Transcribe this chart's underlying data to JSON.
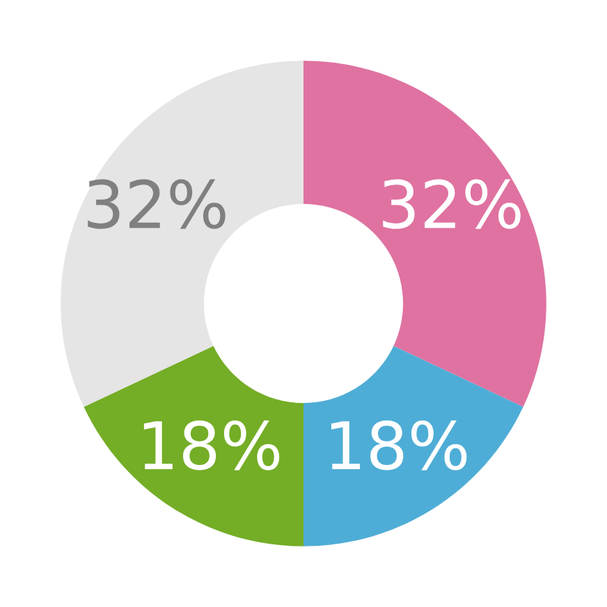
{
  "chart_data": {
    "type": "donut",
    "categories": [
      null,
      null,
      null,
      null
    ],
    "values": [
      32,
      18,
      18,
      32
    ],
    "colors": [
      "#df72a1",
      "#4eadd6",
      "#74ad26",
      "#e5e5e5"
    ],
    "value_labels": [
      "32%",
      "18%",
      "18%",
      "32%"
    ]
  }
}
